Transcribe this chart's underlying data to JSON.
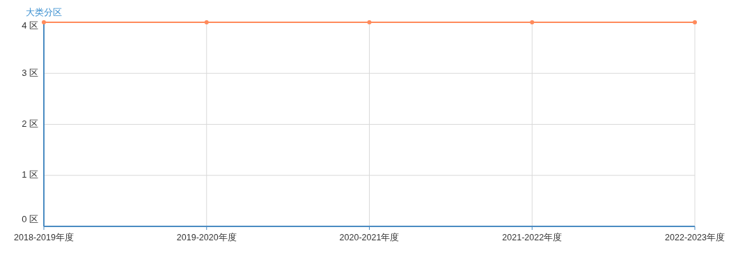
{
  "chart_data": {
    "type": "line",
    "ylabel": "大类分区",
    "categories": [
      "2018-2019年度",
      "2019-2020年度",
      "2020-2021年度",
      "2021-2022年度",
      "2022-2023年度"
    ],
    "series": [
      {
        "color": "#ff8a5b",
        "values": [
          4,
          4,
          4,
          4,
          4
        ]
      }
    ],
    "ylim": [
      0,
      4
    ],
    "yticks": [
      {
        "value": 0,
        "label": "0 区"
      },
      {
        "value": 1,
        "label": "1 区"
      },
      {
        "value": 2,
        "label": "2 区"
      },
      {
        "value": 3,
        "label": "3 区"
      },
      {
        "value": 4,
        "label": "4 区"
      }
    ],
    "grid": true,
    "marker": "circle",
    "line_style": "solid"
  }
}
